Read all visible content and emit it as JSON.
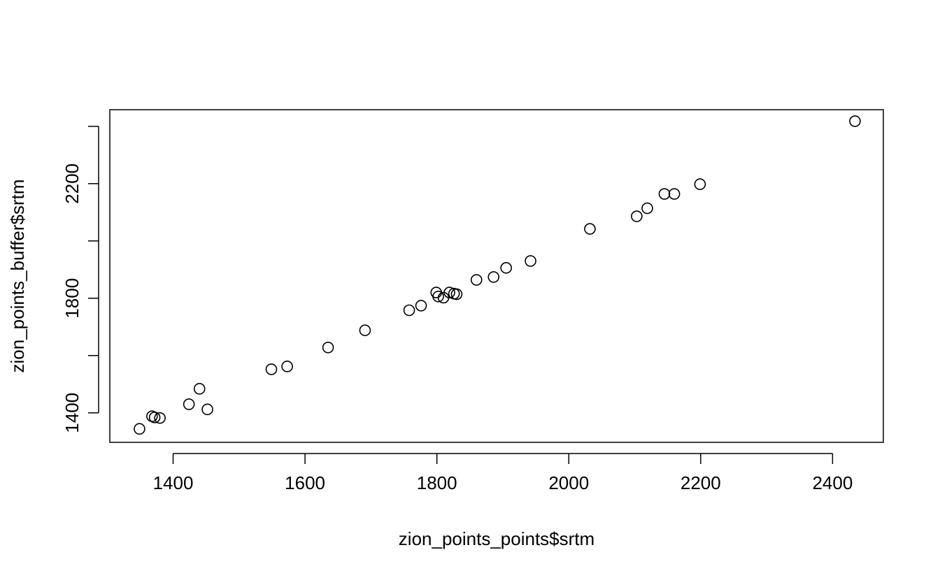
{
  "chart_data": {
    "type": "scatter",
    "title": "",
    "xlabel": "zion_points_points$srtm",
    "ylabel": "zion_points_buffer$srtm",
    "xlim": [
      1304,
      2477
    ],
    "ylim": [
      1297,
      2458
    ],
    "x_ticks": [
      1400,
      1600,
      1800,
      2000,
      2200,
      2400
    ],
    "y_ticks": [
      1400,
      1800,
      2200
    ],
    "y_minor_ticks": [
      1600,
      2000,
      2400
    ],
    "grid": false,
    "legend": "none",
    "points": [
      {
        "x": 1349,
        "y": 1344
      },
      {
        "x": 1368,
        "y": 1388
      },
      {
        "x": 1372,
        "y": 1384
      },
      {
        "x": 1380,
        "y": 1382
      },
      {
        "x": 1424,
        "y": 1430
      },
      {
        "x": 1440,
        "y": 1484
      },
      {
        "x": 1452,
        "y": 1412
      },
      {
        "x": 1549,
        "y": 1552
      },
      {
        "x": 1573,
        "y": 1562
      },
      {
        "x": 1635,
        "y": 1628
      },
      {
        "x": 1691,
        "y": 1688
      },
      {
        "x": 1758,
        "y": 1758
      },
      {
        "x": 1776,
        "y": 1774
      },
      {
        "x": 1799,
        "y": 1820
      },
      {
        "x": 1802,
        "y": 1806
      },
      {
        "x": 1810,
        "y": 1802
      },
      {
        "x": 1819,
        "y": 1820
      },
      {
        "x": 1826,
        "y": 1816
      },
      {
        "x": 1830,
        "y": 1814
      },
      {
        "x": 1860,
        "y": 1864
      },
      {
        "x": 1886,
        "y": 1874
      },
      {
        "x": 1905,
        "y": 1906
      },
      {
        "x": 1942,
        "y": 1930
      },
      {
        "x": 2032,
        "y": 2042
      },
      {
        "x": 2103,
        "y": 2086
      },
      {
        "x": 2119,
        "y": 2114
      },
      {
        "x": 2145,
        "y": 2164
      },
      {
        "x": 2160,
        "y": 2164
      },
      {
        "x": 2199,
        "y": 2198
      },
      {
        "x": 2434,
        "y": 2418
      }
    ]
  }
}
